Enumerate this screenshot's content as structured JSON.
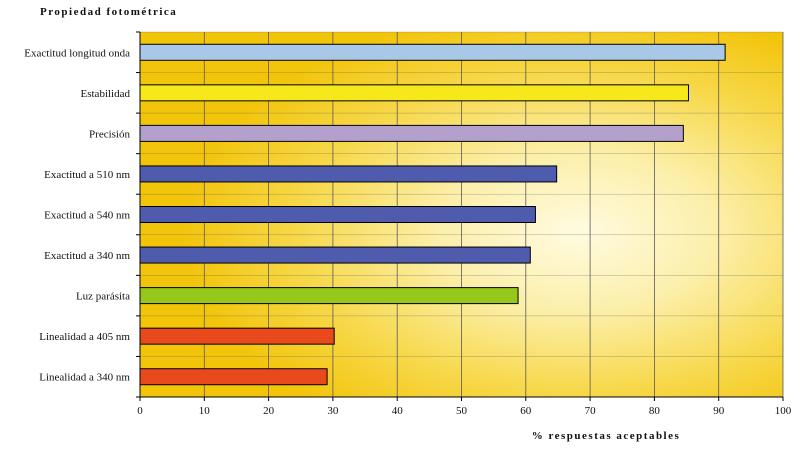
{
  "chart_data": {
    "type": "bar",
    "orientation": "horizontal",
    "title": "Propiedad fotométrica",
    "xlabel": "% respuestas aceptables",
    "ylabel": "",
    "xlim": [
      0,
      100
    ],
    "xticks": [
      0,
      10,
      20,
      30,
      40,
      50,
      60,
      70,
      80,
      90,
      100
    ],
    "grid": true,
    "categories": [
      "Exactitud longitud onda",
      "Estabilidad",
      "Precisión",
      "Exactitud a 510 nm",
      "Exactitud a 540 nm",
      "Exactitud a 340 nm",
      "Luz parásita",
      "Linealidad a 405 nm",
      "Linealidad a 340 nm"
    ],
    "values": [
      91,
      85.3,
      84.5,
      64.8,
      61.5,
      60.7,
      58.8,
      30.2,
      29.1
    ],
    "bar_colors": [
      "#a9c8e8",
      "#f7e81c",
      "#b4a0cc",
      "#4f5cae",
      "#4f5cae",
      "#4f5cae",
      "#96c81c",
      "#e84a1c",
      "#e84a1c"
    ],
    "background_colors": {
      "center": "#fffbe0",
      "edge": "#f2c40a"
    }
  }
}
